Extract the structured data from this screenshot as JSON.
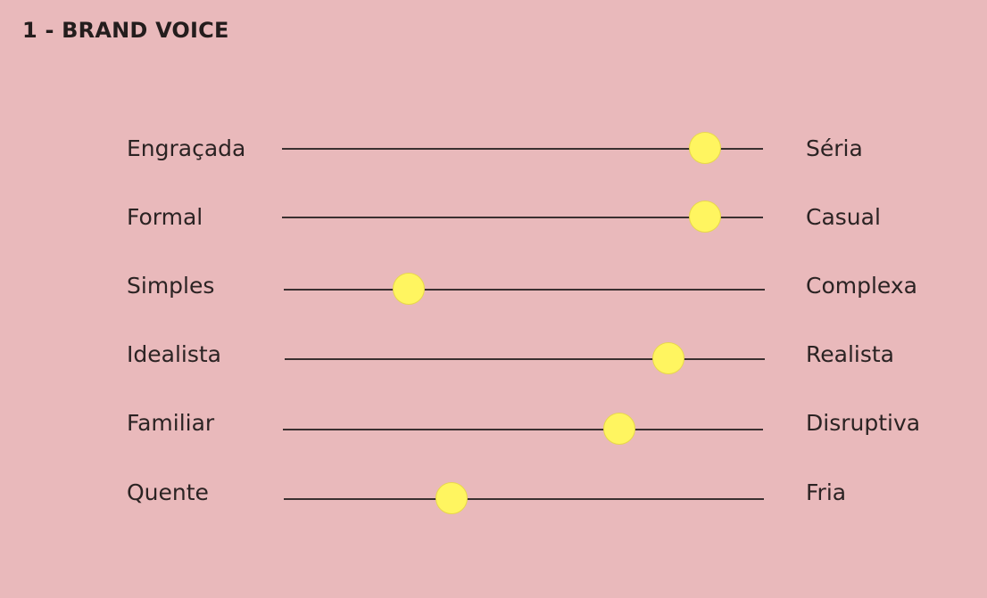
{
  "header": {
    "title": "1 - BRAND VOICE"
  },
  "colors": {
    "background": "#e9b9bb",
    "thumb": "#fff560",
    "track": "#3a3030"
  },
  "sliders": [
    {
      "left_label": "Engraçada",
      "right_label": "Séria",
      "value": 0.88
    },
    {
      "left_label": "Formal",
      "right_label": "Casual",
      "value": 0.88
    },
    {
      "left_label": "Simples",
      "right_label": "Complexa",
      "value": 0.26
    },
    {
      "left_label": "Idealista",
      "right_label": "Realista",
      "value": 0.8
    },
    {
      "left_label": "Familiar",
      "right_label": "Disruptiva",
      "value": 0.7
    },
    {
      "left_label": "Quente",
      "right_label": "Fria",
      "value": 0.35
    }
  ]
}
